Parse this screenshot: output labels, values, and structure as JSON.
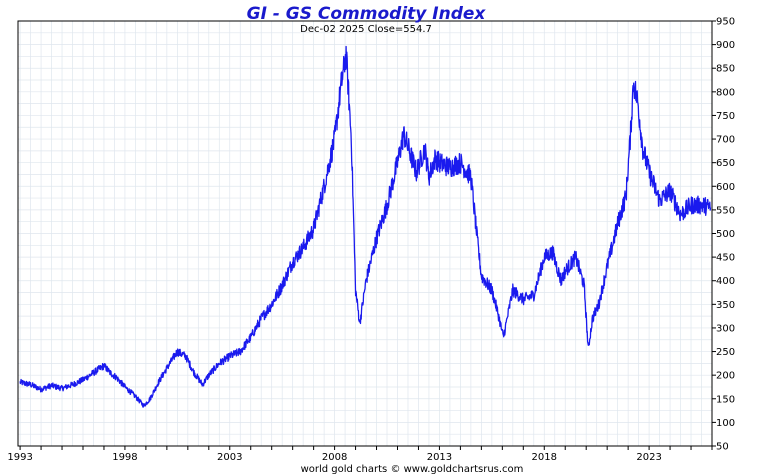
{
  "chart_data": {
    "type": "line",
    "title": "GI  -  GS Commodity Index",
    "subtitle": "Dec-02  2025   Close=554.7",
    "credit": "world gold charts © www.goldchartsrus.com",
    "xlabel": "",
    "ylabel": "",
    "xlim": [
      1992.9,
      2026.0
    ],
    "ylim": [
      50,
      950
    ],
    "y_ticks": [
      50,
      100,
      150,
      200,
      250,
      300,
      350,
      400,
      450,
      500,
      550,
      600,
      650,
      700,
      750,
      800,
      850,
      900,
      950
    ],
    "x_ticks": [
      1993,
      1998,
      2003,
      2008,
      2013,
      2018,
      2023
    ],
    "x_tick_labels": [
      "1993",
      "1998",
      "2003",
      "2008",
      "2013",
      "2018",
      "2023"
    ],
    "grid": true,
    "line_color": "#1a1aee",
    "x": [
      1993.0,
      1993.5,
      1994.0,
      1994.5,
      1995.0,
      1995.5,
      1996.0,
      1996.5,
      1997.0,
      1997.3,
      1997.6,
      1998.0,
      1998.5,
      1998.9,
      1999.2,
      1999.6,
      2000.0,
      2000.5,
      2000.9,
      2001.3,
      2001.7,
      2002.0,
      2002.5,
      2003.0,
      2003.5,
      2004.0,
      2004.5,
      2005.0,
      2005.5,
      2006.0,
      2006.5,
      2007.0,
      2007.5,
      2008.0,
      2008.3,
      2008.55,
      2008.8,
      2009.0,
      2009.2,
      2009.5,
      2010.0,
      2010.5,
      2011.0,
      2011.3,
      2011.6,
      2011.9,
      2012.3,
      2012.5,
      2012.8,
      2013.0,
      2013.5,
      2014.0,
      2014.5,
      2014.8,
      2015.0,
      2015.5,
      2015.8,
      2016.05,
      2016.5,
      2017.0,
      2017.5,
      2018.0,
      2018.4,
      2018.8,
      2019.0,
      2019.5,
      2019.9,
      2020.1,
      2020.3,
      2020.6,
      2021.0,
      2021.5,
      2021.9,
      2022.1,
      2022.25,
      2022.45,
      2022.7,
      2023.0,
      2023.5,
      2024.0,
      2024.5,
      2025.0,
      2025.5,
      2025.93
    ],
    "values": [
      185,
      180,
      170,
      178,
      172,
      180,
      190,
      205,
      220,
      205,
      195,
      175,
      155,
      135,
      150,
      185,
      215,
      250,
      240,
      205,
      180,
      200,
      225,
      240,
      250,
      280,
      320,
      350,
      390,
      440,
      470,
      510,
      600,
      700,
      810,
      880,
      700,
      380,
      310,
      400,
      490,
      560,
      650,
      710,
      670,
      630,
      680,
      620,
      660,
      650,
      640,
      650,
      620,
      490,
      410,
      380,
      330,
      280,
      380,
      360,
      370,
      450,
      460,
      400,
      420,
      450,
      390,
      255,
      320,
      350,
      430,
      520,
      580,
      700,
      820,
      780,
      680,
      630,
      570,
      590,
      540,
      560,
      560,
      555
    ]
  }
}
